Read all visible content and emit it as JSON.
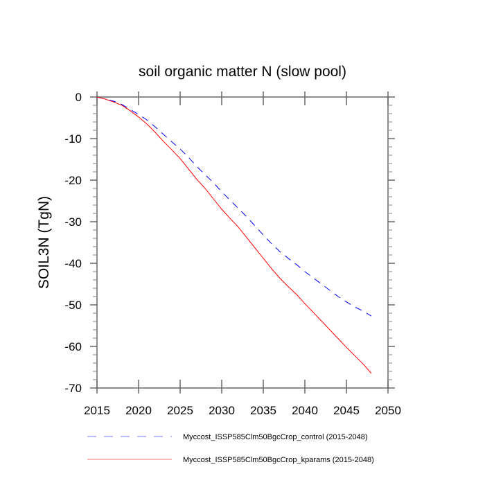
{
  "chart_data": {
    "type": "line",
    "title": "soil organic matter N (slow pool)",
    "xlabel": "",
    "ylabel": "SOIL3N  (TgN)",
    "xlim": [
      2015,
      2050
    ],
    "ylim": [
      -70,
      0
    ],
    "xticks": [
      2015,
      2020,
      2025,
      2030,
      2035,
      2040,
      2045,
      2050
    ],
    "yticks": [
      0,
      -10,
      -20,
      -30,
      -40,
      -50,
      -60,
      -70
    ],
    "xtick_labels": [
      "2015",
      "2020",
      "2025",
      "2030",
      "2035",
      "2040",
      "2045",
      "2050"
    ],
    "ytick_labels": [
      "0",
      "-10",
      "-20",
      "-30",
      "-40",
      "-50",
      "-60",
      "-70"
    ],
    "grid": false,
    "legend_position": "bottom",
    "x": [
      2015,
      2016,
      2017,
      2018,
      2019,
      2020,
      2021,
      2022,
      2023,
      2024,
      2025,
      2026,
      2027,
      2028,
      2029,
      2030,
      2031,
      2032,
      2033,
      2034,
      2035,
      2036,
      2037,
      2038,
      2039,
      2040,
      2041,
      2042,
      2043,
      2044,
      2045,
      2046,
      2047,
      2048
    ],
    "series": [
      {
        "name": "Myccost_ISSP585Clm50BgcCrop_control (2015-2048)",
        "color": "#0000ff",
        "style": "dashed",
        "values": [
          0,
          -0.5,
          -1,
          -1.8,
          -3,
          -4.2,
          -5.5,
          -7.2,
          -9,
          -10.8,
          -12.5,
          -14.5,
          -16.7,
          -18.7,
          -20.6,
          -22.8,
          -24.8,
          -26.8,
          -28.8,
          -31,
          -33.2,
          -35.3,
          -37.2,
          -38.8,
          -40.3,
          -42,
          -43.5,
          -45,
          -46.5,
          -48,
          -49.3,
          -50.5,
          -51.5,
          -52.7
        ]
      },
      {
        "name": "Myccost_ISSP585Clm50BgcCrop_kparams (2015-2048)",
        "color": "#ff0000",
        "style": "solid",
        "values": [
          0,
          -0.5,
          -1.2,
          -2,
          -3.3,
          -4.8,
          -6.5,
          -8.5,
          -10.7,
          -12.7,
          -14.8,
          -17.3,
          -19.8,
          -22,
          -24.5,
          -27,
          -29.2,
          -31.3,
          -33.8,
          -36.3,
          -38.8,
          -41.3,
          -43.6,
          -45.6,
          -47.5,
          -49.7,
          -51.8,
          -53.9,
          -56,
          -58.1,
          -60.2,
          -62.2,
          -64.2,
          -66.5
        ]
      }
    ]
  }
}
